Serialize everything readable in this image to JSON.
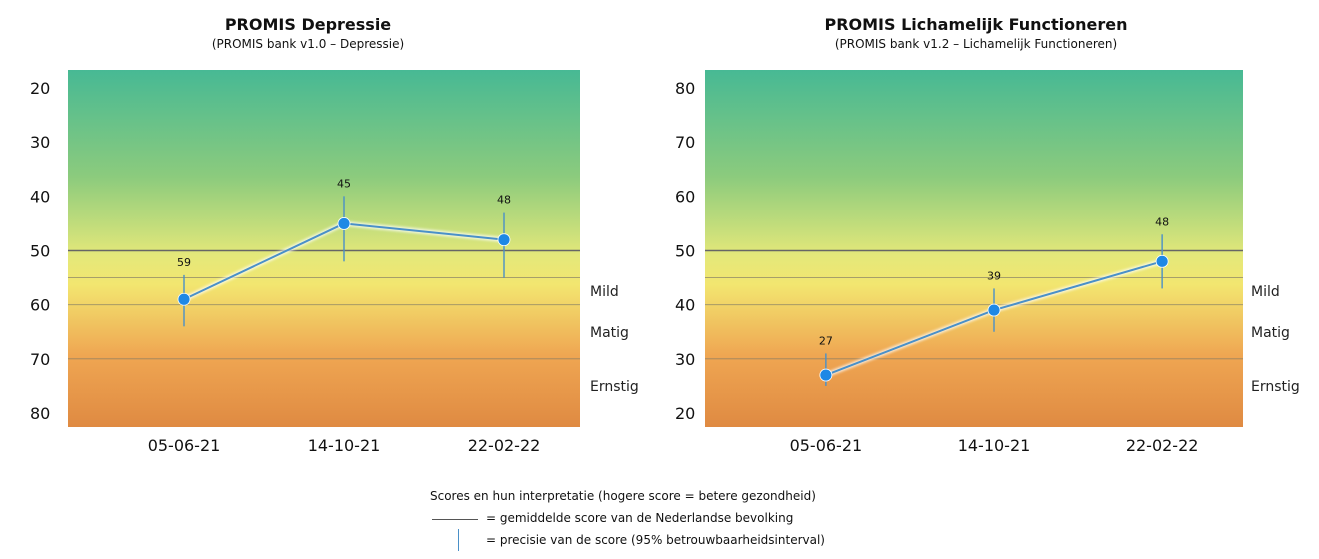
{
  "chart_data": [
    {
      "type": "line",
      "title": "PROMIS Depressie",
      "subtitle": "(PROMIS bank v1.0 – Depressie)",
      "categories": [
        "05-06-21",
        "14-10-21",
        "22-02-22"
      ],
      "values": [
        59,
        45,
        48
      ],
      "ci": [
        [
          54.5,
          64
        ],
        [
          40,
          52
        ],
        [
          43,
          55
        ]
      ],
      "y_ticks": [
        20,
        30,
        40,
        50,
        60,
        70,
        80
      ],
      "ylim": [
        20,
        80
      ],
      "y_inverted": true,
      "reference_line": 50,
      "bands": [
        {
          "label": "Mild",
          "from": 55,
          "to": 60
        },
        {
          "label": "Matig",
          "from": 60,
          "to": 70
        },
        {
          "label": "Ernstig",
          "from": 70,
          "to": 80
        }
      ],
      "colors": {
        "line": "#4a90c8",
        "point": "#1e88e5",
        "reference": "#666666"
      },
      "grid": false
    },
    {
      "type": "line",
      "title": "PROMIS Lichamelijk Functioneren",
      "subtitle": "(PROMIS bank v1.2 – Lichamelijk Functioneren)",
      "categories": [
        "05-06-21",
        "14-10-21",
        "22-02-22"
      ],
      "values": [
        27,
        39,
        48
      ],
      "ci": [
        [
          25,
          31
        ],
        [
          35,
          43
        ],
        [
          43,
          53
        ]
      ],
      "y_ticks": [
        20,
        30,
        40,
        50,
        60,
        70,
        80
      ],
      "ylim": [
        20,
        80
      ],
      "y_inverted": false,
      "reference_line": 50,
      "bands": [
        {
          "label": "Mild",
          "from": 40,
          "to": 45
        },
        {
          "label": "Matig",
          "from": 30,
          "to": 40
        },
        {
          "label": "Ernstig",
          "from": 20,
          "to": 30
        }
      ],
      "colors": {
        "line": "#4a90c8",
        "point": "#1e88e5",
        "reference": "#666666"
      },
      "grid": false
    }
  ],
  "legend": {
    "title": "Scores en hun interpretatie (hogere score = betere gezondheid)",
    "reference_line": "= gemiddelde score van de Nederlandse bevolking",
    "ci": "= precisie van de score (95% betrouwbaarheidsinterval)"
  }
}
